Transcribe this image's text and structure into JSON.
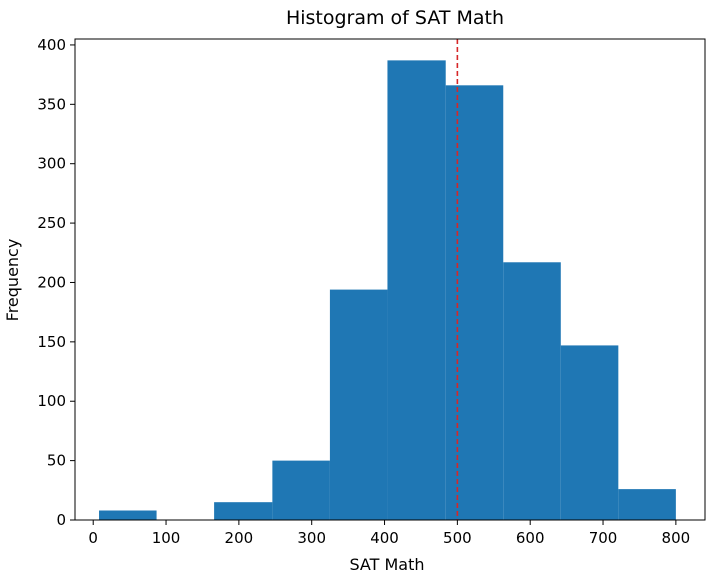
{
  "chart_data": {
    "type": "bar",
    "title": "Histogram of SAT Math",
    "xlabel": "SAT Math",
    "ylabel": "Frequency",
    "xlim": [
      -25,
      840
    ],
    "ylim": [
      0,
      405
    ],
    "xticks": [
      0,
      100,
      200,
      300,
      400,
      500,
      600,
      700,
      800
    ],
    "yticks": [
      0,
      50,
      100,
      150,
      200,
      250,
      300,
      350,
      400
    ],
    "bins": [
      {
        "x0": 8,
        "x1": 87,
        "count": 8
      },
      {
        "x0": 87,
        "x1": 166,
        "count": 0
      },
      {
        "x0": 166,
        "x1": 246,
        "count": 15
      },
      {
        "x0": 246,
        "x1": 325,
        "count": 50
      },
      {
        "x0": 325,
        "x1": 404,
        "count": 194
      },
      {
        "x0": 404,
        "x1": 484,
        "count": 387
      },
      {
        "x0": 484,
        "x1": 563,
        "count": 366
      },
      {
        "x0": 563,
        "x1": 642,
        "count": 217
      },
      {
        "x0": 642,
        "x1": 721,
        "count": 147
      },
      {
        "x0": 721,
        "x1": 800,
        "count": 26
      }
    ],
    "reference_line": {
      "x": 500,
      "style": "dashed",
      "color": "#d62728"
    },
    "bar_color": "#1f77b4",
    "grid": false,
    "legend": "none"
  }
}
